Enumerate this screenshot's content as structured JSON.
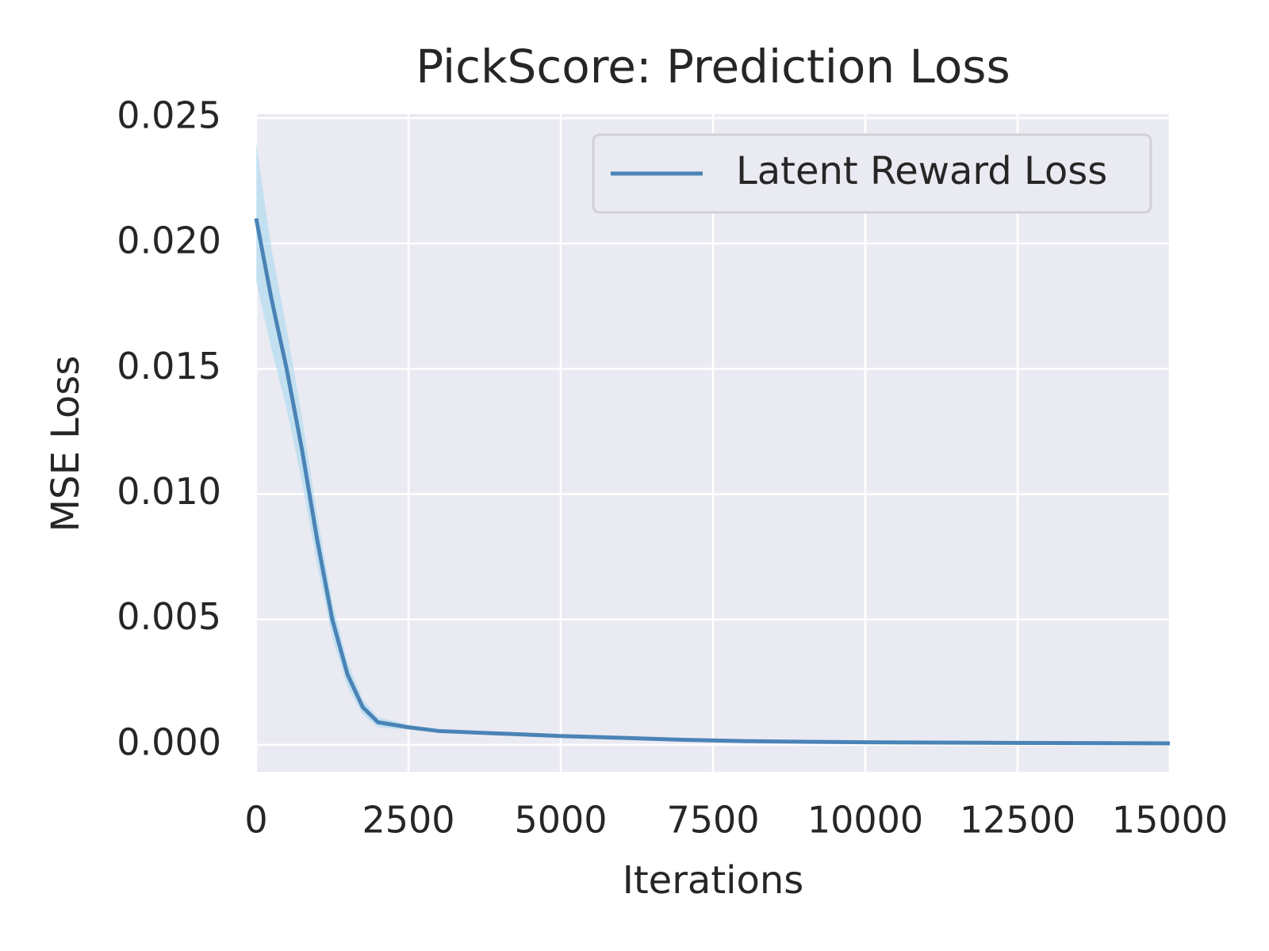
{
  "chart_data": {
    "type": "line",
    "title": "PickScore: Prediction Loss",
    "xlabel": "Iterations",
    "ylabel": "MSE Loss",
    "x": [
      0,
      250,
      500,
      750,
      1000,
      1250,
      1500,
      1750,
      2000,
      2500,
      3000,
      4000,
      5000,
      6000,
      7000,
      8000,
      9000,
      10000,
      12000,
      15000
    ],
    "series": [
      {
        "name": "Latent Reward Loss",
        "color": "#4a83b6",
        "band_color": "#a8d8ee",
        "values": [
          0.021,
          0.0178,
          0.015,
          0.0118,
          0.0082,
          0.005,
          0.0028,
          0.0015,
          0.0009,
          0.0007,
          0.00055,
          0.00045,
          0.00035,
          0.00028,
          0.0002,
          0.00015,
          0.00012,
          0.0001,
          8e-05,
          6e-05
        ],
        "upper": [
          0.024,
          0.0198,
          0.0166,
          0.0131,
          0.0092,
          0.0057,
          0.0033,
          0.0018,
          0.0011,
          0.0008,
          0.00062,
          0.0005,
          0.0004,
          0.00032,
          0.00023,
          0.00018,
          0.00014,
          0.00012,
          0.0001,
          8e-05
        ],
        "lower": [
          0.0185,
          0.0158,
          0.0134,
          0.0105,
          0.0072,
          0.0043,
          0.0023,
          0.0012,
          0.0007,
          0.0006,
          0.00048,
          0.0004,
          0.0003,
          0.00024,
          0.00017,
          0.00012,
          0.0001,
          8e-05,
          6e-05,
          4e-05
        ]
      }
    ],
    "xlim": [
      0,
      15000
    ],
    "xticks": [
      0,
      2500,
      5000,
      7500,
      10000,
      12500,
      15000
    ],
    "ylim": [
      -0.00108,
      0.02516
    ],
    "yticks": [
      {
        "value": 0,
        "label": "0.000"
      },
      {
        "value": 0.005,
        "label": "0.005"
      },
      {
        "value": 0.01,
        "label": "0.010"
      },
      {
        "value": 0.015,
        "label": "0.015"
      },
      {
        "value": 0.02,
        "label": "0.020"
      },
      {
        "value": 0.025,
        "label": "0.025"
      }
    ],
    "grid": true,
    "legend": "upper right"
  }
}
